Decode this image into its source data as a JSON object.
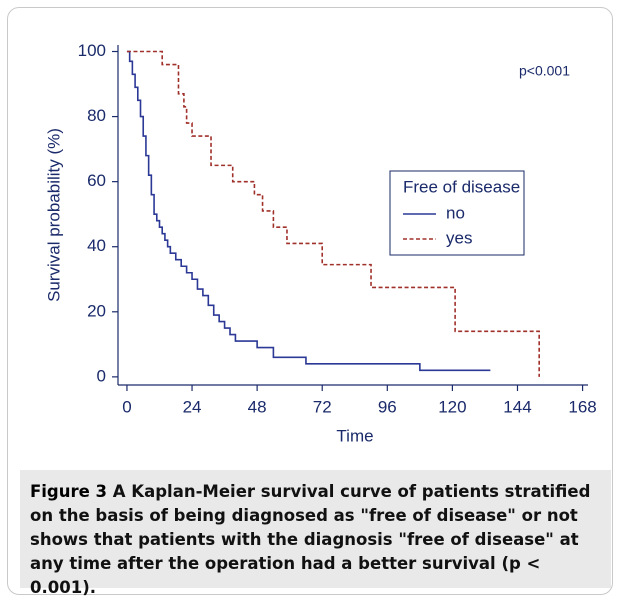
{
  "chart_data": {
    "type": "step",
    "y_label": "Survival probability (%)",
    "x_label": "Time",
    "annotation": "p<0.001",
    "legend_title": "Free of disease",
    "xlim": [
      -3.3,
      170
    ],
    "xticks": [
      0,
      24,
      48,
      72,
      96,
      120,
      144,
      168
    ],
    "ylim": [
      -2.5,
      102
    ],
    "yticks": [
      0,
      20,
      40,
      60,
      80,
      100
    ],
    "series": [
      {
        "name": "no",
        "color": "#2b3896",
        "dash": "solid",
        "x": [
          0,
          1,
          2,
          3,
          4,
          5,
          6,
          7,
          8,
          9,
          10,
          11,
          12,
          13,
          14,
          15,
          16,
          18,
          20,
          22,
          24,
          26,
          28,
          30,
          32,
          34,
          36,
          38,
          40,
          48,
          54,
          66,
          108,
          134
        ],
        "values": [
          100,
          97,
          93,
          89,
          85,
          80,
          74,
          68,
          62,
          56,
          50,
          48,
          46,
          44,
          42,
          40,
          38,
          36,
          34,
          32,
          30,
          27,
          25,
          22,
          19,
          17,
          15,
          13,
          11,
          9,
          6,
          4,
          2,
          2
        ]
      },
      {
        "name": "yes",
        "color": "#a0302a",
        "dash": "dashed",
        "x": [
          0,
          13,
          19,
          21,
          22,
          24,
          31,
          39,
          47,
          50,
          54,
          59,
          72,
          90,
          121,
          152
        ],
        "values": [
          100,
          96,
          87,
          83,
          78,
          74,
          65,
          60,
          56,
          51,
          46,
          41,
          34.5,
          27.5,
          14,
          0
        ]
      }
    ]
  },
  "caption": {
    "label": "Figure 3",
    "text": "A Kaplan-Meier survival curve of patients stratified on the basis of being diagnosed as \"free of disease\" or not shows that patients with the diagnosis \"free of disease\" at any time after the operation had a better survival (p < 0.001)."
  }
}
